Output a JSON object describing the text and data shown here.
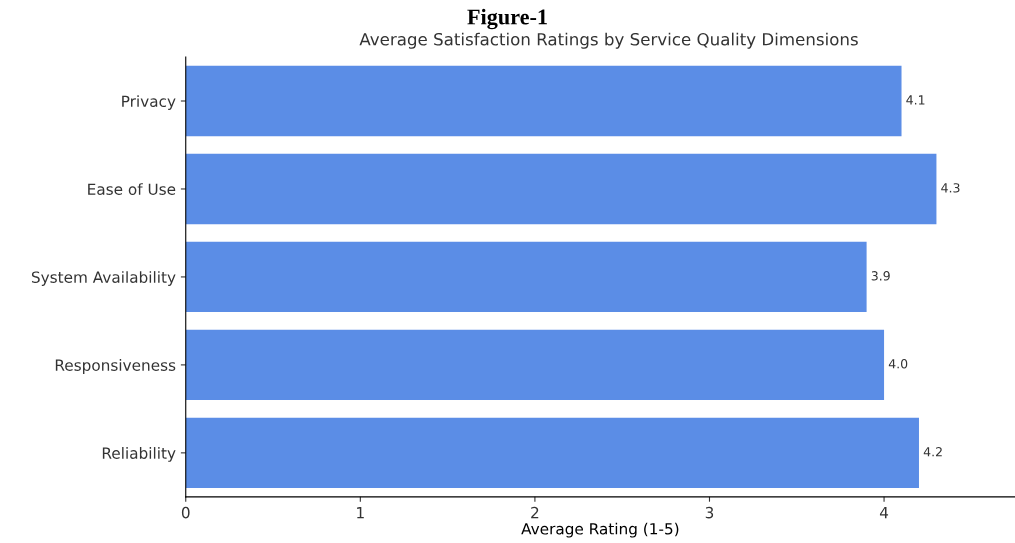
{
  "chart_data": {
    "type": "bar",
    "orientation": "horizontal",
    "title": "Figure-1",
    "subtitle": "Average Satisfaction Ratings by Service Quality Dimensions",
    "xlabel": "Average Rating (1-5)",
    "categories": [
      "Privacy",
      "Ease of Use",
      "System Availability",
      "Responsiveness",
      "Reliability"
    ],
    "values": [
      4.1,
      4.3,
      3.9,
      4.0,
      4.2
    ],
    "color": "#5b8de6",
    "xlim": [
      0,
      4.75
    ],
    "xticks": [
      0,
      1,
      2,
      3,
      4
    ],
    "value_labels": [
      "4.1",
      "4.3",
      "3.9",
      "4.0",
      "4.2"
    ]
  }
}
